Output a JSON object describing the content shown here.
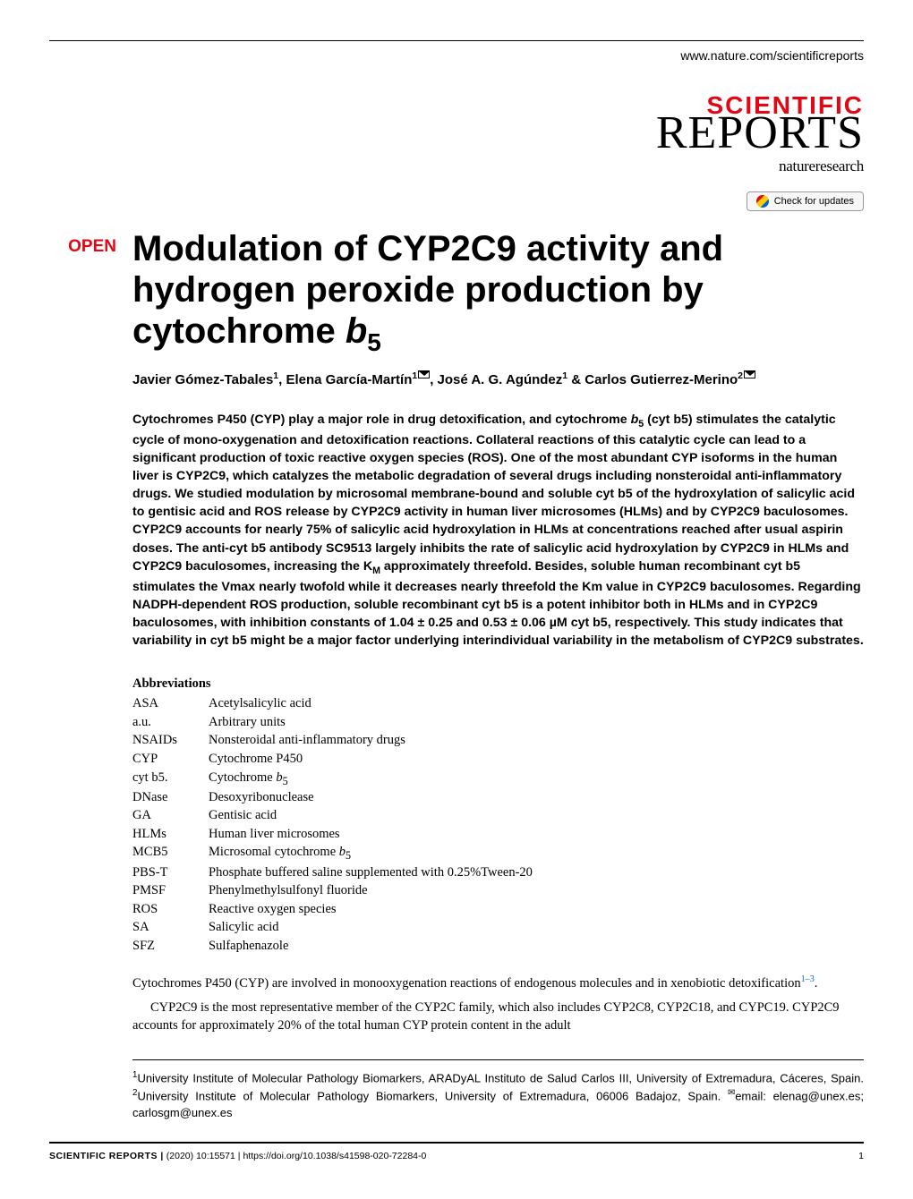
{
  "header": {
    "journal_url": "www.nature.com/scientificreports",
    "logo_line1": "SCIENTIFIC",
    "logo_line2": "REPORTS",
    "logo_sub": "natureresearch",
    "check_updates": "Check for updates"
  },
  "article": {
    "open_label": "OPEN",
    "title_html": "Modulation of CYP2C9 activity and hydrogen peroxide production by cytochrome <span class='ital'>b</span><span class='sub'>5</span>",
    "authors_html": "Javier Gómez-Tabales<sup>1</sup>, Elena García-Martín<sup>1</sup><span class='mail-icon'></span>, José A. G. Agúndez<sup>1</sup> & Carlos Gutierrez-Merino<sup>2</sup><span class='mail-icon'></span>",
    "abstract_html": "Cytochromes P450 (CYP) play a major role in drug detoxification, and cytochrome <span class='ital'>b</span><sub>5</sub> (cyt b5) stimulates the catalytic cycle of mono-oxygenation and detoxification reactions. Collateral reactions of this catalytic cycle can lead to a significant production of toxic reactive oxygen species (ROS). One of the most abundant CYP isoforms in the human liver is CYP2C9, which catalyzes the metabolic degradation of several drugs including nonsteroidal anti-inflammatory drugs. We studied modulation by microsomal membrane-bound and soluble cyt b5 of the hydroxylation of salicylic acid to gentisic acid and ROS release by CYP2C9 activity in human liver microsomes (HLMs) and by CYP2C9 baculosomes. CYP2C9 accounts for nearly 75% of salicylic acid hydroxylation in HLMs at concentrations reached after usual aspirin doses. The anti-cyt b5 antibody SC9513 largely inhibits the rate of salicylic acid hydroxylation by CYP2C9 in HLMs and CYP2C9 baculosomes, increasing the K<sub>M</sub> approximately threefold. Besides, soluble human recombinant cyt b5 stimulates the Vmax nearly twofold while it decreases nearly threefold the Km value in CYP2C9 baculosomes. Regarding NADPH-dependent ROS production, soluble recombinant cyt b5 is a potent inhibitor both in HLMs and in CYP2C9 baculosomes, with inhibition constants of 1.04 ± 0.25 and 0.53 ± 0.06 µM cyt b5, respectively. This study indicates that variability in cyt b5 might be a major factor underlying interindividual variability in the metabolism of CYP2C9 substrates.",
    "abbrev_heading": "Abbreviations",
    "abbreviations": [
      {
        "k": "ASA",
        "v": "Acetylsalicylic acid"
      },
      {
        "k": "a.u.",
        "v": "Arbitrary units"
      },
      {
        "k": "NSAIDs",
        "v": "Nonsteroidal anti-inflammatory drugs"
      },
      {
        "k": "CYP",
        "v": "Cytochrome P450"
      },
      {
        "k": "cyt b5.",
        "v": "Cytochrome <i>b</i><sub>5</sub>"
      },
      {
        "k": "DNase",
        "v": "Desoxyribonuclease"
      },
      {
        "k": "GA",
        "v": "Gentisic acid"
      },
      {
        "k": "HLMs",
        "v": "Human liver microsomes"
      },
      {
        "k": "MCB5",
        "v": "Microsomal cytochrome <i>b</i><sub>5</sub>"
      },
      {
        "k": "PBS-T",
        "v": "Phosphate buffered saline supplemented with 0.25%Tween-20"
      },
      {
        "k": "PMSF",
        "v": "Phenylmethylsulfonyl fluoride"
      },
      {
        "k": "ROS",
        "v": "Reactive oxygen species"
      },
      {
        "k": "SA",
        "v": "Salicylic acid"
      },
      {
        "k": "SFZ",
        "v": "Sulfaphenazole"
      }
    ],
    "body_para1_html": "Cytochromes P450 (CYP) are involved in monooxygenation reactions of endogenous molecules and in xenobiotic detoxification<sup>1–3</sup>.",
    "body_para2_html": "CYP2C9 is the most representative member of the CYP2C family, which also includes CYP2C8, CYP2C18, and CYPC19. CYP2C9 accounts for approximately 20% of the total human CYP protein content in the adult",
    "affiliations_html": "<sup>1</sup>University Institute of Molecular Pathology Biomarkers, ARADyAL Instituto de Salud Carlos III, University of Extremadura, Cáceres, Spain. <sup>2</sup>University Institute of Molecular Pathology Biomarkers, University of Extremadura, 06006 Badajoz, Spain. <sup>✉</sup>email: elenag@unex.es; carlosgm@unex.es"
  },
  "footer": {
    "left": "SCIENTIFIC REPORTS |",
    "mid": "(2020) 10:15571",
    "doi": "| https://doi.org/10.1038/s41598-020-72284-0",
    "page": "1"
  },
  "colors": {
    "brand_red": "#e30613",
    "link_blue": "#0066cc",
    "text": "#000000",
    "bg": "#ffffff"
  }
}
